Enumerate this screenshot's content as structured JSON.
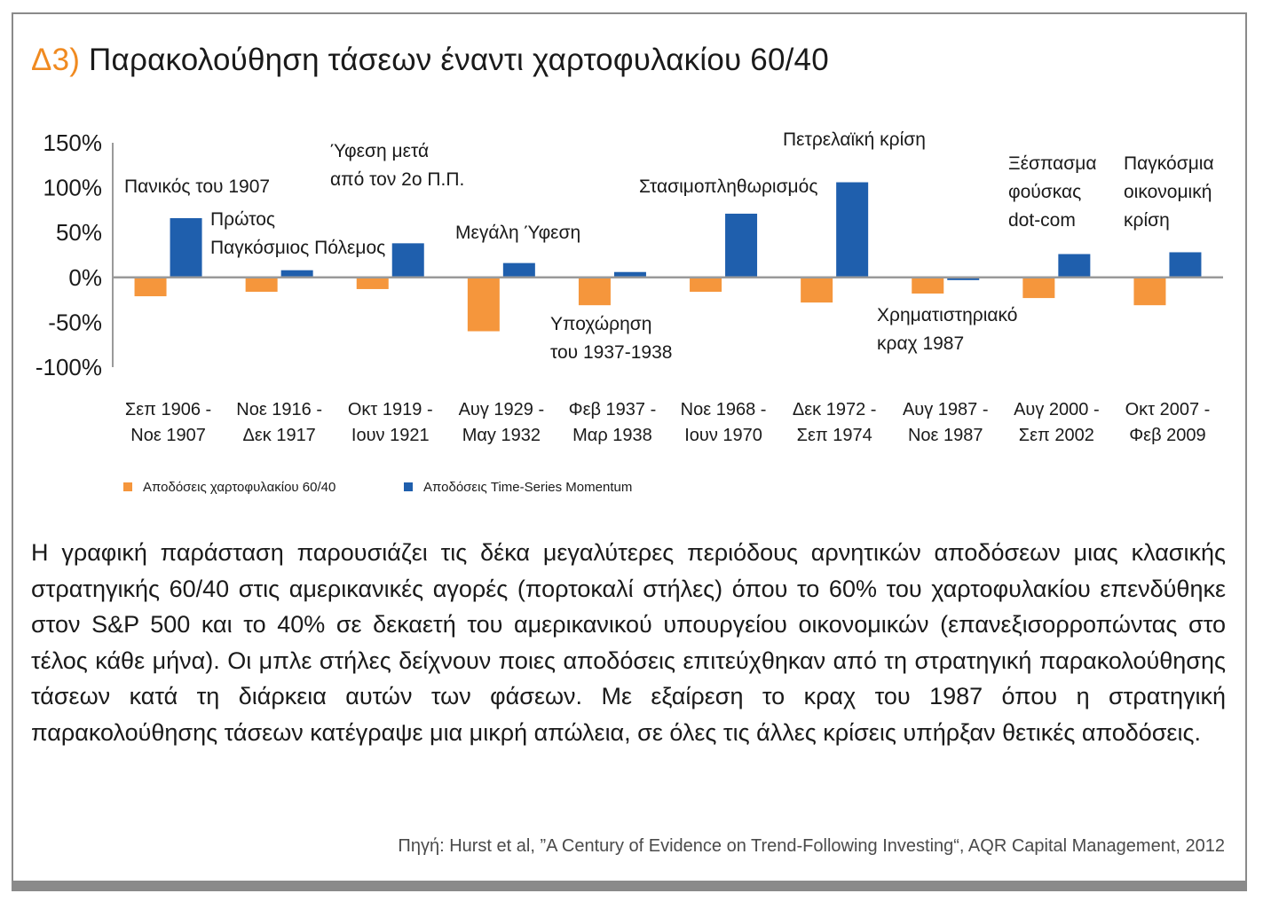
{
  "title": {
    "prefix": "Δ3)",
    "text": "Παρακολούθηση τάσεων έναντι χαρτοφυλακίου 60/40"
  },
  "chart_data": {
    "type": "bar",
    "ylim": [
      -100,
      150
    ],
    "yticks": [
      150,
      100,
      50,
      0,
      -50,
      -100
    ],
    "ytick_labels": [
      "150%",
      "100%",
      "50%",
      "0%",
      "-50%",
      "-100%"
    ],
    "categories": [
      [
        "Σεπ 1906 -",
        "Νοε 1907"
      ],
      [
        "Νοε 1916 -",
        "Δεκ 1917"
      ],
      [
        "Οκτ 1919 -",
        "Ιουν 1921"
      ],
      [
        "Αυγ 1929 -",
        "Μαy 1932"
      ],
      [
        "Φεβ 1937 -",
        "Μαρ 1938"
      ],
      [
        "Νοε 1968 -",
        "Ιουν 1970"
      ],
      [
        "Δεκ 1972 -",
        "Σεπ 1974"
      ],
      [
        "Αυγ 1987 -",
        "Νοε 1987"
      ],
      [
        "Αυγ 2000 -",
        "Σεπ 2002"
      ],
      [
        "Οκτ 2007 -",
        "Φεβ 2009"
      ]
    ],
    "series": [
      {
        "name": "Αποδόσεις χαρτοφυλακίου 60/40",
        "color": "#f5963c",
        "values": [
          -21,
          -16,
          -13,
          -60,
          -31,
          -16,
          -28,
          -18,
          -23,
          -31
        ]
      },
      {
        "name": "Αποδόσεις Time-Series Momentum",
        "color": "#1f5fad",
        "values": [
          66,
          8,
          38,
          16,
          6,
          71,
          106,
          -3,
          26,
          28
        ]
      }
    ],
    "annotations": [
      {
        "lines": [
          "Πανικός του 1907"
        ],
        "category": 0
      },
      {
        "lines": [
          "Πρώτος",
          "Παγκόσμιος Πόλεμος"
        ],
        "category": 1
      },
      {
        "lines": [
          "Ύφεση μετά",
          "από τον 2ο Π.Π."
        ],
        "category": 2
      },
      {
        "lines": [
          "Μεγάλη Ύφεση"
        ],
        "category": 3
      },
      {
        "lines": [
          "Υποχώρηση",
          "του 1937-1938"
        ],
        "category": 4
      },
      {
        "lines": [
          "Στασιμοπληθωρισμός"
        ],
        "category": 5
      },
      {
        "lines": [
          "Πετρελαϊκή κρίση"
        ],
        "category": 6
      },
      {
        "lines": [
          "Χρηματιστηριακό",
          "κραχ 1987"
        ],
        "category": 7
      },
      {
        "lines": [
          "Ξέσπασμα",
          "φούσκας",
          "dot-com"
        ],
        "category": 8
      },
      {
        "lines": [
          "Παγκόσμια",
          "οικονομική",
          "κρίση"
        ],
        "category": 9
      }
    ],
    "legend_position": "bottom-left"
  },
  "description": "Η γραφική παράσταση παρουσιάζει τις δέκα μεγαλύτερες περιόδους αρνητικών αποδόσεων μιας κλασικής στρατηγικής 60/40 στις αμερικανικές αγορές (πορτοκαλί στήλες) όπου το 60% του χαρτοφυλακίου επενδύθηκε στον S&P 500 και το 40% σε δεκαετή του αμερικανικού υπουργείου οικονομικών (επανεξισορροπώντας στο τέλος κάθε μήνα). Οι μπλε στήλες δείχνουν ποιες αποδόσεις επιτεύχθηκαν από τη στρατηγική παρακολούθησης τάσεων κατά τη διάρκεια αυτών των φάσεων. Με εξαίρεση το κραχ του 1987 όπου η στρατηγική παρακολούθησης τάσεων κατέγραψε μια μικρή απώλεια, σε όλες τις άλλες κρίσεις υπήρξαν θετικές αποδόσεις.",
  "source": "Πηγή: Hurst et al, ”A Century of Evidence on Trend-Following Investing“, AQR Capital Management, 2012",
  "colors": {
    "accent": "#f08a20",
    "frame": "#8a8a8a"
  }
}
